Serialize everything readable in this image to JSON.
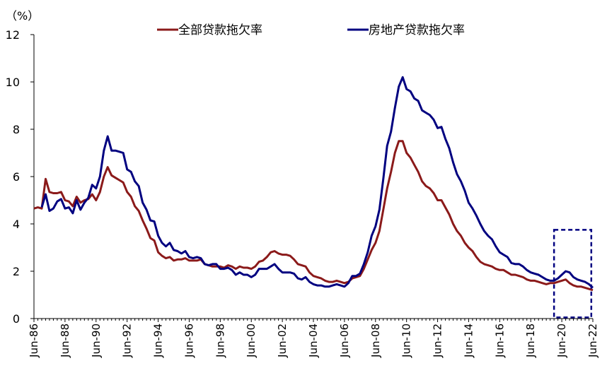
{
  "chart_data": {
    "type": "line",
    "unit_label": "（%）",
    "ylim": [
      0,
      12
    ],
    "y_ticks": [
      0,
      2,
      4,
      6,
      8,
      10,
      12
    ],
    "x_range": [
      1986.5,
      2022.5
    ],
    "x_ticks": [
      "Jun-86",
      "Jun-88",
      "Jun-90",
      "Jun-92",
      "Jun-94",
      "Jun-96",
      "Jun-98",
      "Jun-00",
      "Jun-02",
      "Jun-04",
      "Jun-06",
      "Jun-08",
      "Jun-10",
      "Jun-12",
      "Jun-14",
      "Jun-16",
      "Jun-18",
      "Jun-20",
      "Jun-22"
    ],
    "grid": false,
    "legend_position": "top",
    "highlight_box": {
      "x_start": 2020.0,
      "x_end": 2022.4,
      "y_start": 0.05,
      "y_end": 3.75
    },
    "series": [
      {
        "name": "全部贷款拖欠率",
        "color": "#8B1A1A",
        "points": [
          [
            1986.5,
            4.65
          ],
          [
            1986.75,
            4.7
          ],
          [
            1987.0,
            4.65
          ],
          [
            1987.25,
            5.9
          ],
          [
            1987.5,
            5.35
          ],
          [
            1987.75,
            5.3
          ],
          [
            1988.0,
            5.3
          ],
          [
            1988.25,
            5.35
          ],
          [
            1988.5,
            5.0
          ],
          [
            1988.75,
            4.95
          ],
          [
            1989.0,
            4.75
          ],
          [
            1989.25,
            5.15
          ],
          [
            1989.5,
            4.9
          ],
          [
            1989.75,
            5.0
          ],
          [
            1990.0,
            5.05
          ],
          [
            1990.25,
            5.25
          ],
          [
            1990.5,
            5.0
          ],
          [
            1990.75,
            5.35
          ],
          [
            1991.0,
            6.0
          ],
          [
            1991.25,
            6.4
          ],
          [
            1991.5,
            6.05
          ],
          [
            1991.75,
            5.95
          ],
          [
            1992.0,
            5.85
          ],
          [
            1992.25,
            5.75
          ],
          [
            1992.5,
            5.35
          ],
          [
            1992.75,
            5.15
          ],
          [
            1993.0,
            4.75
          ],
          [
            1993.25,
            4.55
          ],
          [
            1993.5,
            4.15
          ],
          [
            1993.75,
            3.8
          ],
          [
            1994.0,
            3.4
          ],
          [
            1994.25,
            3.3
          ],
          [
            1994.5,
            2.8
          ],
          [
            1994.75,
            2.65
          ],
          [
            1995.0,
            2.55
          ],
          [
            1995.25,
            2.6
          ],
          [
            1995.5,
            2.45
          ],
          [
            1995.75,
            2.5
          ],
          [
            1996.0,
            2.5
          ],
          [
            1996.25,
            2.55
          ],
          [
            1996.5,
            2.45
          ],
          [
            1996.75,
            2.45
          ],
          [
            1997.0,
            2.45
          ],
          [
            1997.25,
            2.5
          ],
          [
            1997.5,
            2.3
          ],
          [
            1997.75,
            2.25
          ],
          [
            1998.0,
            2.2
          ],
          [
            1998.25,
            2.2
          ],
          [
            1998.5,
            2.2
          ],
          [
            1998.75,
            2.15
          ],
          [
            1999.0,
            2.25
          ],
          [
            1999.25,
            2.2
          ],
          [
            1999.5,
            2.1
          ],
          [
            1999.75,
            2.2
          ],
          [
            2000.0,
            2.15
          ],
          [
            2000.25,
            2.15
          ],
          [
            2000.5,
            2.1
          ],
          [
            2000.75,
            2.2
          ],
          [
            2001.0,
            2.4
          ],
          [
            2001.25,
            2.45
          ],
          [
            2001.5,
            2.6
          ],
          [
            2001.75,
            2.8
          ],
          [
            2002.0,
            2.85
          ],
          [
            2002.25,
            2.75
          ],
          [
            2002.5,
            2.7
          ],
          [
            2002.75,
            2.7
          ],
          [
            2003.0,
            2.65
          ],
          [
            2003.25,
            2.5
          ],
          [
            2003.5,
            2.3
          ],
          [
            2003.75,
            2.25
          ],
          [
            2004.0,
            2.2
          ],
          [
            2004.25,
            1.95
          ],
          [
            2004.5,
            1.8
          ],
          [
            2004.75,
            1.75
          ],
          [
            2005.0,
            1.7
          ],
          [
            2005.25,
            1.6
          ],
          [
            2005.5,
            1.55
          ],
          [
            2005.75,
            1.55
          ],
          [
            2006.0,
            1.6
          ],
          [
            2006.25,
            1.55
          ],
          [
            2006.5,
            1.5
          ],
          [
            2006.75,
            1.55
          ],
          [
            2007.0,
            1.7
          ],
          [
            2007.25,
            1.75
          ],
          [
            2007.5,
            1.8
          ],
          [
            2007.75,
            2.1
          ],
          [
            2008.0,
            2.5
          ],
          [
            2008.25,
            2.9
          ],
          [
            2008.5,
            3.2
          ],
          [
            2008.75,
            3.7
          ],
          [
            2009.0,
            4.6
          ],
          [
            2009.25,
            5.5
          ],
          [
            2009.5,
            6.2
          ],
          [
            2009.75,
            7.0
          ],
          [
            2010.0,
            7.5
          ],
          [
            2010.25,
            7.5
          ],
          [
            2010.5,
            7.0
          ],
          [
            2010.75,
            6.8
          ],
          [
            2011.0,
            6.5
          ],
          [
            2011.25,
            6.2
          ],
          [
            2011.5,
            5.8
          ],
          [
            2011.75,
            5.6
          ],
          [
            2012.0,
            5.5
          ],
          [
            2012.25,
            5.3
          ],
          [
            2012.5,
            5.0
          ],
          [
            2012.75,
            5.0
          ],
          [
            2013.0,
            4.7
          ],
          [
            2013.25,
            4.4
          ],
          [
            2013.5,
            4.0
          ],
          [
            2013.75,
            3.7
          ],
          [
            2014.0,
            3.5
          ],
          [
            2014.25,
            3.2
          ],
          [
            2014.5,
            3.0
          ],
          [
            2014.75,
            2.85
          ],
          [
            2015.0,
            2.6
          ],
          [
            2015.25,
            2.4
          ],
          [
            2015.5,
            2.3
          ],
          [
            2015.75,
            2.25
          ],
          [
            2016.0,
            2.2
          ],
          [
            2016.25,
            2.1
          ],
          [
            2016.5,
            2.05
          ],
          [
            2016.75,
            2.05
          ],
          [
            2017.0,
            1.95
          ],
          [
            2017.25,
            1.85
          ],
          [
            2017.5,
            1.85
          ],
          [
            2017.75,
            1.8
          ],
          [
            2018.0,
            1.75
          ],
          [
            2018.25,
            1.65
          ],
          [
            2018.5,
            1.6
          ],
          [
            2018.75,
            1.6
          ],
          [
            2019.0,
            1.55
          ],
          [
            2019.25,
            1.5
          ],
          [
            2019.5,
            1.45
          ],
          [
            2019.75,
            1.5
          ],
          [
            2020.0,
            1.5
          ],
          [
            2020.25,
            1.55
          ],
          [
            2020.5,
            1.6
          ],
          [
            2020.75,
            1.65
          ],
          [
            2021.0,
            1.5
          ],
          [
            2021.25,
            1.4
          ],
          [
            2021.5,
            1.35
          ],
          [
            2021.75,
            1.35
          ],
          [
            2022.0,
            1.3
          ],
          [
            2022.25,
            1.25
          ],
          [
            2022.5,
            1.2
          ]
        ]
      },
      {
        "name": "房地产贷款拖欠率",
        "color": "#000080",
        "points": [
          [
            1987.0,
            4.7
          ],
          [
            1987.25,
            5.25
          ],
          [
            1987.5,
            4.55
          ],
          [
            1987.75,
            4.65
          ],
          [
            1988.0,
            4.95
          ],
          [
            1988.25,
            5.05
          ],
          [
            1988.5,
            4.65
          ],
          [
            1988.75,
            4.7
          ],
          [
            1989.0,
            4.45
          ],
          [
            1989.25,
            5.0
          ],
          [
            1989.5,
            4.6
          ],
          [
            1989.75,
            4.9
          ],
          [
            1990.0,
            5.1
          ],
          [
            1990.25,
            5.65
          ],
          [
            1990.5,
            5.5
          ],
          [
            1990.75,
            6.0
          ],
          [
            1991.0,
            7.1
          ],
          [
            1991.25,
            7.7
          ],
          [
            1991.5,
            7.1
          ],
          [
            1991.75,
            7.1
          ],
          [
            1992.0,
            7.05
          ],
          [
            1992.25,
            7.0
          ],
          [
            1992.5,
            6.3
          ],
          [
            1992.75,
            6.2
          ],
          [
            1993.0,
            5.8
          ],
          [
            1993.25,
            5.6
          ],
          [
            1993.5,
            4.9
          ],
          [
            1993.75,
            4.6
          ],
          [
            1994.0,
            4.15
          ],
          [
            1994.25,
            4.1
          ],
          [
            1994.5,
            3.5
          ],
          [
            1994.75,
            3.2
          ],
          [
            1995.0,
            3.05
          ],
          [
            1995.25,
            3.2
          ],
          [
            1995.5,
            2.9
          ],
          [
            1995.75,
            2.85
          ],
          [
            1996.0,
            2.75
          ],
          [
            1996.25,
            2.85
          ],
          [
            1996.5,
            2.6
          ],
          [
            1996.75,
            2.55
          ],
          [
            1997.0,
            2.6
          ],
          [
            1997.25,
            2.55
          ],
          [
            1997.5,
            2.3
          ],
          [
            1997.75,
            2.25
          ],
          [
            1998.0,
            2.3
          ],
          [
            1998.25,
            2.3
          ],
          [
            1998.5,
            2.1
          ],
          [
            1998.75,
            2.1
          ],
          [
            1999.0,
            2.15
          ],
          [
            1999.25,
            2.05
          ],
          [
            1999.5,
            1.85
          ],
          [
            1999.75,
            1.95
          ],
          [
            2000.0,
            1.85
          ],
          [
            2000.25,
            1.85
          ],
          [
            2000.5,
            1.75
          ],
          [
            2000.75,
            1.85
          ],
          [
            2001.0,
            2.1
          ],
          [
            2001.25,
            2.1
          ],
          [
            2001.5,
            2.1
          ],
          [
            2001.75,
            2.2
          ],
          [
            2002.0,
            2.3
          ],
          [
            2002.25,
            2.1
          ],
          [
            2002.5,
            1.95
          ],
          [
            2002.75,
            1.95
          ],
          [
            2003.0,
            1.95
          ],
          [
            2003.25,
            1.9
          ],
          [
            2003.5,
            1.7
          ],
          [
            2003.75,
            1.65
          ],
          [
            2004.0,
            1.75
          ],
          [
            2004.25,
            1.55
          ],
          [
            2004.5,
            1.45
          ],
          [
            2004.75,
            1.4
          ],
          [
            2005.0,
            1.4
          ],
          [
            2005.25,
            1.35
          ],
          [
            2005.5,
            1.35
          ],
          [
            2005.75,
            1.4
          ],
          [
            2006.0,
            1.45
          ],
          [
            2006.25,
            1.4
          ],
          [
            2006.5,
            1.35
          ],
          [
            2006.75,
            1.5
          ],
          [
            2007.0,
            1.8
          ],
          [
            2007.25,
            1.8
          ],
          [
            2007.5,
            1.9
          ],
          [
            2007.75,
            2.3
          ],
          [
            2008.0,
            2.8
          ],
          [
            2008.25,
            3.5
          ],
          [
            2008.5,
            3.9
          ],
          [
            2008.75,
            4.6
          ],
          [
            2009.0,
            5.9
          ],
          [
            2009.25,
            7.3
          ],
          [
            2009.5,
            7.9
          ],
          [
            2009.75,
            8.9
          ],
          [
            2010.0,
            9.8
          ],
          [
            2010.25,
            10.2
          ],
          [
            2010.5,
            9.7
          ],
          [
            2010.75,
            9.6
          ],
          [
            2011.0,
            9.3
          ],
          [
            2011.25,
            9.2
          ],
          [
            2011.5,
            8.8
          ],
          [
            2011.75,
            8.7
          ],
          [
            2012.0,
            8.6
          ],
          [
            2012.25,
            8.4
          ],
          [
            2012.5,
            8.05
          ],
          [
            2012.75,
            8.1
          ],
          [
            2013.0,
            7.6
          ],
          [
            2013.25,
            7.2
          ],
          [
            2013.5,
            6.6
          ],
          [
            2013.75,
            6.1
          ],
          [
            2014.0,
            5.8
          ],
          [
            2014.25,
            5.4
          ],
          [
            2014.5,
            4.9
          ],
          [
            2014.75,
            4.65
          ],
          [
            2015.0,
            4.35
          ],
          [
            2015.25,
            4.0
          ],
          [
            2015.5,
            3.7
          ],
          [
            2015.75,
            3.5
          ],
          [
            2016.0,
            3.35
          ],
          [
            2016.25,
            3.05
          ],
          [
            2016.5,
            2.8
          ],
          [
            2016.75,
            2.7
          ],
          [
            2017.0,
            2.6
          ],
          [
            2017.25,
            2.35
          ],
          [
            2017.5,
            2.3
          ],
          [
            2017.75,
            2.3
          ],
          [
            2018.0,
            2.2
          ],
          [
            2018.25,
            2.05
          ],
          [
            2018.5,
            1.95
          ],
          [
            2018.75,
            1.9
          ],
          [
            2019.0,
            1.85
          ],
          [
            2019.25,
            1.75
          ],
          [
            2019.5,
            1.65
          ],
          [
            2019.75,
            1.6
          ],
          [
            2020.0,
            1.6
          ],
          [
            2020.25,
            1.7
          ],
          [
            2020.5,
            1.85
          ],
          [
            2020.75,
            2.0
          ],
          [
            2021.0,
            1.95
          ],
          [
            2021.25,
            1.75
          ],
          [
            2021.5,
            1.65
          ],
          [
            2021.75,
            1.6
          ],
          [
            2022.0,
            1.55
          ],
          [
            2022.25,
            1.45
          ],
          [
            2022.5,
            1.3
          ]
        ]
      }
    ]
  }
}
